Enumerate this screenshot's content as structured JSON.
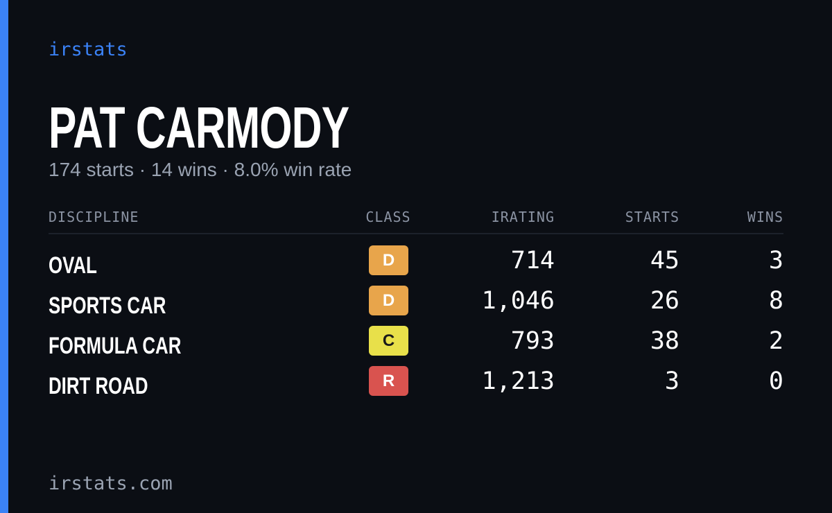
{
  "brand": "irstats",
  "driver": {
    "name": "PAT CARMODY",
    "summary": "174 starts · 14 wins · 8.0% win rate"
  },
  "table": {
    "columns": [
      "DISCIPLINE",
      "CLASS",
      "IRATING",
      "STARTS",
      "WINS"
    ],
    "rows": [
      {
        "discipline": "OVAL",
        "class": "D",
        "class_color": "#e8a54b",
        "class_text_color": "#ffffff",
        "irating": "714",
        "starts": "45",
        "wins": "3"
      },
      {
        "discipline": "SPORTS CAR",
        "class": "D",
        "class_color": "#e8a54b",
        "class_text_color": "#ffffff",
        "irating": "1,046",
        "starts": "26",
        "wins": "8"
      },
      {
        "discipline": "FORMULA CAR",
        "class": "C",
        "class_color": "#e8e04a",
        "class_text_color": "#1a1a1a",
        "irating": "793",
        "starts": "38",
        "wins": "2"
      },
      {
        "discipline": "DIRT ROAD",
        "class": "R",
        "class_color": "#d9534f",
        "class_text_color": "#ffffff",
        "irating": "1,213",
        "starts": "3",
        "wins": "0"
      }
    ]
  },
  "footer": "irstats.com"
}
